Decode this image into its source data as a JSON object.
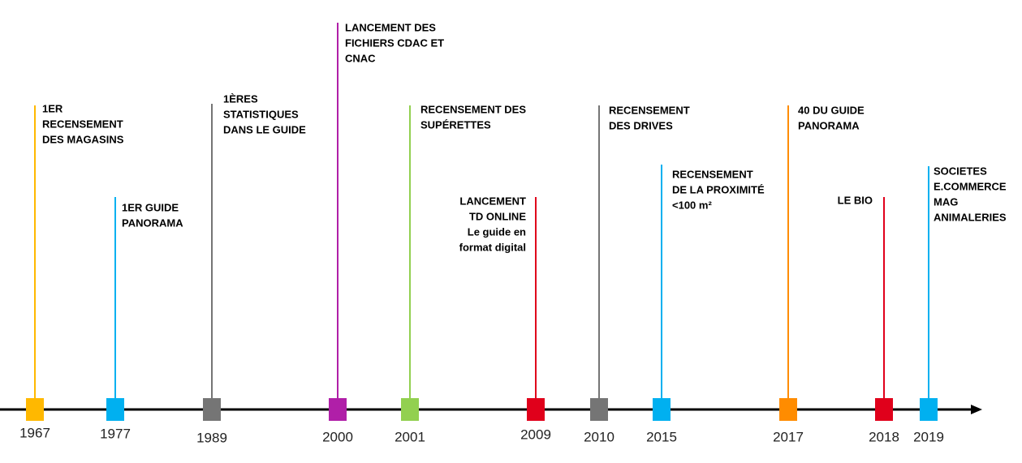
{
  "events": [
    {
      "year": "1967",
      "label": [
        "1ER",
        "RECENSEMENT",
        "DES MAGASINS"
      ],
      "color": "#ffb800"
    },
    {
      "year": "1977",
      "label": [
        "1ER GUIDE",
        "PANORAMA"
      ],
      "color": "#00b0f0"
    },
    {
      "year": "1989",
      "label": [
        "1ÈRES",
        "STATISTIQUES",
        "DANS LE GUIDE"
      ],
      "color": "#757575"
    },
    {
      "year": "2000",
      "label": [
        "LANCEMENT DES",
        "FICHIERS CDAC ET",
        "CNAC"
      ],
      "color": "#b01fa8"
    },
    {
      "year": "2001",
      "label": [
        "RECENSEMENT DES",
        "SUPÉRETTES"
      ],
      "color": "#92d050"
    },
    {
      "year": "2009",
      "label": [
        "LANCEMENT",
        "TD ONLINE",
        "Le guide en",
        "format digital"
      ],
      "color": "#e0001b"
    },
    {
      "year": "2010",
      "label": [
        "RECENSEMENT",
        "DES DRIVES"
      ],
      "color": "#757575"
    },
    {
      "year": "2015",
      "label": [
        "RECENSEMENT",
        "DE LA PROXIMITÉ",
        "<100 m²"
      ],
      "color": "#00b0f0"
    },
    {
      "year": "2017",
      "label": [
        "40 DU GUIDE",
        "PANORAMA"
      ],
      "color": "#ff8c00"
    },
    {
      "year": "2018",
      "label": [
        "LE BIO"
      ],
      "color": "#e0001b"
    },
    {
      "year": "2019",
      "label": [
        "SOCIETES",
        "E.COMMERCE",
        "MAG",
        "ANIMALERIES"
      ],
      "color": "#00b0f0"
    }
  ]
}
